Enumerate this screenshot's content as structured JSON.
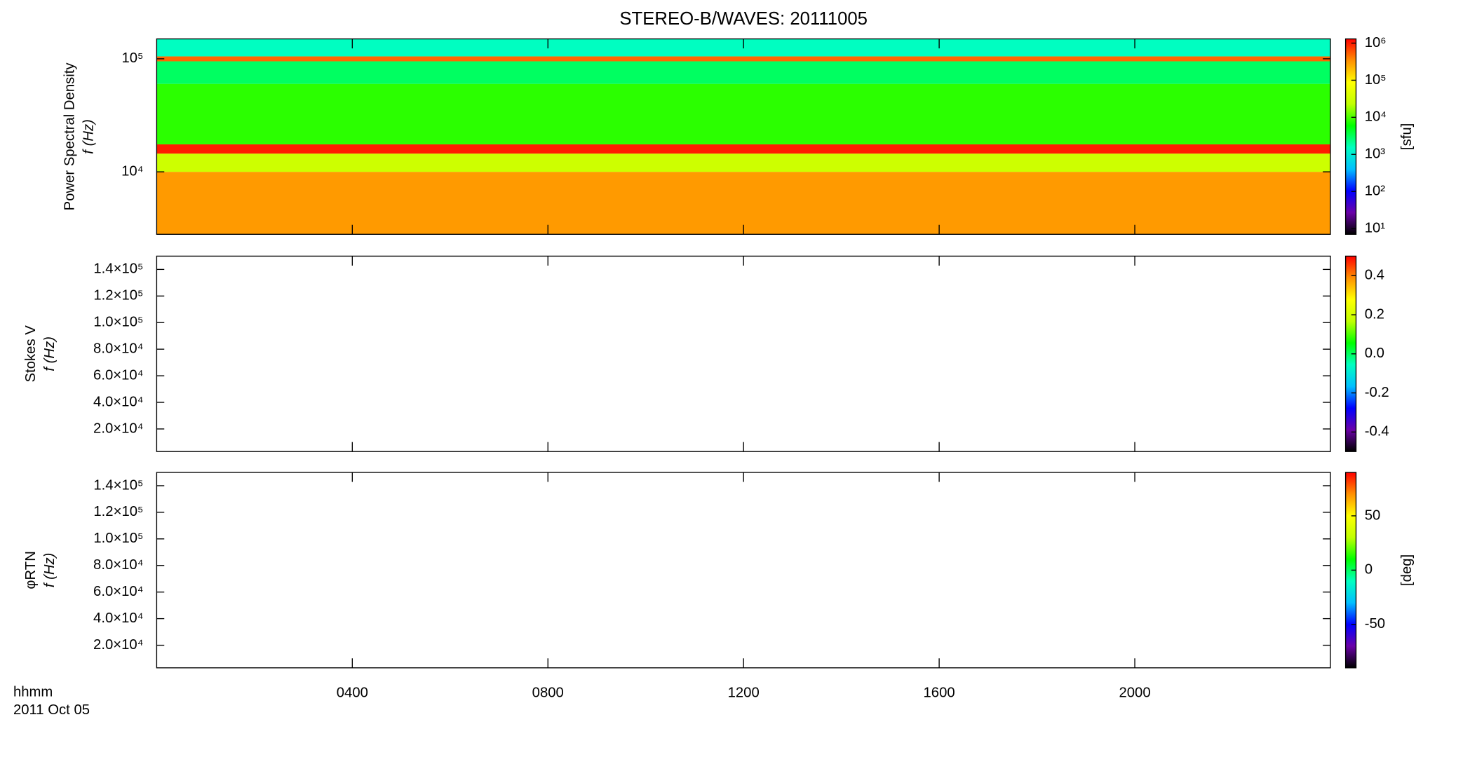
{
  "chart_data": [
    {
      "type": "heatmap",
      "title": "STEREO-B/WAVES: 20111005",
      "ylabel": [
        "Power Spectral Density",
        "f (Hz)"
      ],
      "ylog": true,
      "xlim": [
        0,
        24
      ],
      "ylim": [
        2800,
        150000
      ],
      "yticks": [
        {
          "value": 10000,
          "label": "10⁴"
        },
        {
          "value": 100000,
          "label": "10⁵"
        }
      ],
      "bands": [
        {
          "lo": 2800,
          "hi": 10000,
          "value": 300000
        },
        {
          "lo": 10000,
          "hi": 14500,
          "value": 30000
        },
        {
          "lo": 14500,
          "hi": 17500,
          "value": 1000000
        },
        {
          "lo": 17500,
          "hi": 60000,
          "value": 8000
        },
        {
          "lo": 60000,
          "hi": 95000,
          "value": 3000
        },
        {
          "lo": 95000,
          "hi": 105000,
          "value": 500000
        },
        {
          "lo": 105000,
          "hi": 150000,
          "value": 1500
        }
      ],
      "colorbar": {
        "label": "[sfu]",
        "log": true,
        "lim": [
          7,
          1300000
        ],
        "ticks": [
          {
            "value": 10,
            "label": "10¹"
          },
          {
            "value": 100,
            "label": "10²"
          },
          {
            "value": 1000,
            "label": "10³"
          },
          {
            "value": 10000,
            "label": "10⁴"
          },
          {
            "value": 100000,
            "label": "10⁵"
          },
          {
            "value": 1000000,
            "label": "10⁶"
          }
        ]
      },
      "colormap": [
        "#000000",
        "#6a00a8",
        "#0000ff",
        "#00bfff",
        "#00ffc0",
        "#00ff00",
        "#c0ff00",
        "#ffff00",
        "#ff9000",
        "#ff0000"
      ]
    },
    {
      "type": "heatmap",
      "ylabel": [
        "Stokes V",
        "f (Hz)"
      ],
      "ylog": false,
      "xlim": [
        0,
        24
      ],
      "ylim": [
        3000,
        150000
      ],
      "yticks": [
        {
          "value": 20000,
          "label": "2.0×10⁴"
        },
        {
          "value": 40000,
          "label": "4.0×10⁴"
        },
        {
          "value": 60000,
          "label": "6.0×10⁴"
        },
        {
          "value": 80000,
          "label": "8.0×10⁴"
        },
        {
          "value": 100000,
          "label": "1.0×10⁵"
        },
        {
          "value": 120000,
          "label": "1.2×10⁵"
        },
        {
          "value": 140000,
          "label": "1.4×10⁵"
        }
      ],
      "bands": [],
      "colorbar": {
        "log": false,
        "lim": [
          -0.5,
          0.5
        ],
        "ticks": [
          {
            "value": -0.4,
            "label": "-0.4"
          },
          {
            "value": -0.2,
            "label": "-0.2"
          },
          {
            "value": 0,
            "label": "0.0"
          },
          {
            "value": 0.2,
            "label": "0.2"
          },
          {
            "value": 0.4,
            "label": "0.4"
          }
        ]
      },
      "colormap": [
        "#000000",
        "#6a00a8",
        "#0000ff",
        "#00bfff",
        "#00ffc0",
        "#00ff00",
        "#c0ff00",
        "#ffff00",
        "#ff9000",
        "#ff0000"
      ]
    },
    {
      "type": "heatmap",
      "ylabel": [
        "φRTN",
        "f (Hz)"
      ],
      "ylog": false,
      "xlim": [
        0,
        24
      ],
      "ylim": [
        3000,
        150000
      ],
      "yticks": [
        {
          "value": 20000,
          "label": "2.0×10⁴"
        },
        {
          "value": 40000,
          "label": "4.0×10⁴"
        },
        {
          "value": 60000,
          "label": "6.0×10⁴"
        },
        {
          "value": 80000,
          "label": "8.0×10⁴"
        },
        {
          "value": 100000,
          "label": "1.0×10⁵"
        },
        {
          "value": 120000,
          "label": "1.2×10⁵"
        },
        {
          "value": 140000,
          "label": "1.4×10⁵"
        }
      ],
      "bands": [],
      "colorbar": {
        "label": "[deg]",
        "log": false,
        "lim": [
          -90,
          90
        ],
        "ticks": [
          -50,
          0,
          50
        ]
      },
      "colormap": [
        "#000000",
        "#6a00a8",
        "#0000ff",
        "#00bfff",
        "#00ffc0",
        "#00ff00",
        "#c0ff00",
        "#ffff00",
        "#ff9000",
        "#ff0000"
      ],
      "xticks": [
        {
          "value": 4,
          "label": "0400"
        },
        {
          "value": 8,
          "label": "0800"
        },
        {
          "value": 12,
          "label": "1200"
        },
        {
          "value": 16,
          "label": "1600"
        },
        {
          "value": 20,
          "label": "2000"
        }
      ],
      "xlabel": [
        "hhmm",
        "2011 Oct 05"
      ]
    }
  ]
}
